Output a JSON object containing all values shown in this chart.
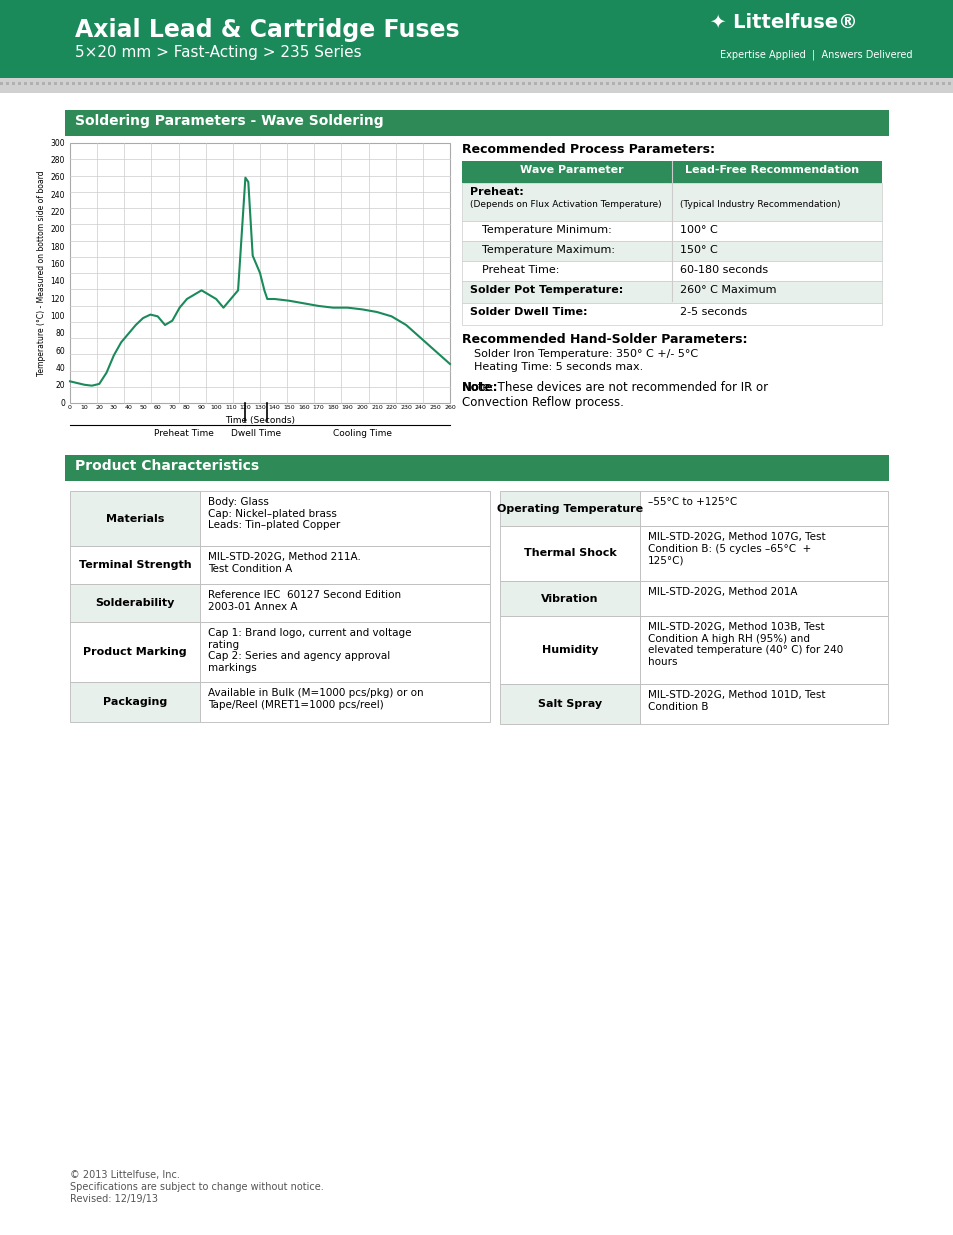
{
  "title_main": "Axial Lead & Cartridge Fuses",
  "title_sub": "5×20 mm > Fast-Acting > 235 Series",
  "header_bg": "#1a8a5a",
  "header_text_color": "#ffffff",
  "logo_text": "Littelfuse®",
  "logo_sub": "Expertise Applied  |  Answers Delivered",
  "section1_title": "Soldering Parameters - Wave Soldering",
  "section2_title": "Product Characteristics",
  "wave_param_header": [
    "Wave Parameter",
    "Lead-Free Recommendation"
  ],
  "process_params_title": "Recommended Process Parameters:",
  "preheat_label": "Preheat:",
  "preheat_sub1": "(Depends on Flux Activation Temperature)",
  "preheat_sub2": "(Typical Industry Recommendation)",
  "temp_min_label": "Temperature Minimum:",
  "temp_min_val": "100° C",
  "temp_max_label": "Temperature Maximum:",
  "temp_max_val": "150° C",
  "preheat_time_label": "Preheat Time:",
  "preheat_time_val": "60-180 seconds",
  "solder_pot_label": "Solder Pot Temperature:",
  "solder_pot_val": "260° C Maximum",
  "solder_dwell_label": "Solder Dwell Time:",
  "solder_dwell_val": "2-5 seconds",
  "hand_solder_title": "Recommended Hand-Solder Parameters:",
  "hand_solder_line1": "Solder Iron Temperature: 350° C +/- 5°C",
  "hand_solder_line2": "Heating Time: 5 seconds max.",
  "note_text": "Note: These devices are not recommended for IR or\nConvection Reflow process.",
  "chart_ylabel": "Temperature (°C) - Measured on bottom side of board",
  "chart_xlabel": "Time (Seconds)",
  "chart_title": "",
  "preheat_time_annot": "Preheat Time",
  "dwell_time_annot": "Dwell Time",
  "cooling_time_annot": "Cooling Time",
  "left_table_headers": [
    "Materials",
    "Terminal Strength",
    "Solderability",
    "Product Marking",
    "Packaging"
  ],
  "left_table_values": [
    "Body: Glass\nCap: Nickel–plated brass\nLeads: Tin–plated Copper",
    "MIL-STD-202G, Method 211A.\nTest Condition A",
    "Reference IEC  60127 Second Edition\n2003-01 Annex A",
    "Cap 1: Brand logo, current and voltage\nrating\nCap 2: Series and agency approval\nmarkings",
    "Available in Bulk (M=1000 pcs/pkg) or on\nTape/Reel (MRET1=1000 pcs/reel)"
  ],
  "right_table_headers": [
    "Operating Temperature",
    "Thermal Shock",
    "Vibration",
    "Humidity",
    "Salt Spray"
  ],
  "right_table_values": [
    "–55°C to +125°C",
    "MIL-STD-202G, Method 107G, Test\nCondition B: (5 cycles –65°C  +\n125°C)",
    "MIL-STD-202G, Method 201A",
    "MIL-STD-202G, Method 103B, Test\nCondition A high RH (95%) and\nelevated temperature (40° C) for 240\nhours",
    "MIL-STD-202G, Method 101D, Test\nCondition B"
  ],
  "footer1": "© 2013 Littelfuse, Inc.",
  "footer2": "Specifications are subject to change without notice.",
  "footer3": "Revised: 12/19/13",
  "green_dark": "#1a7a4a",
  "green_header": "#1a8a5a",
  "table_header_bg": "#2e8b5a",
  "table_alt_bg": "#e8f0ec",
  "table_white": "#ffffff",
  "border_color": "#999999",
  "section_bg": "#2e8b57"
}
